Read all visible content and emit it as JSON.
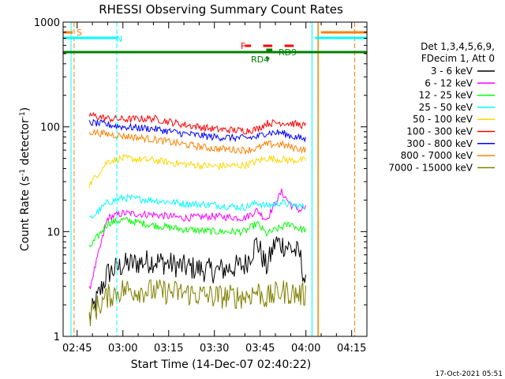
{
  "chart_data": {
    "type": "line",
    "title": "RHESSI Observing Summary Count Rates",
    "ylabel": "Count Rate (s^-1 detector^-1)",
    "xlabel": "Start Time (14-Dec-07 02:40:22)",
    "yscale": "log",
    "ylim": [
      1,
      1000
    ],
    "xlim_minutes": [
      160.4,
      260.0
    ],
    "x_ticks": [
      "02:45",
      "03:00",
      "03:15",
      "03:30",
      "03:45",
      "04:00",
      "04:15"
    ],
    "y_ticks": [
      "1",
      "10",
      "100",
      "1000"
    ],
    "legend_header": [
      "Det 1,3,4,5,6,9,",
      "FDecim 1, Att 0"
    ],
    "series": [
      {
        "name": "3 - 6 keV",
        "color": "#000000",
        "x": [
          "02:49",
          "02:55",
          "03:00",
          "03:10",
          "03:20",
          "03:30",
          "03:40",
          "03:44",
          "03:47",
          "03:50",
          "03:55",
          "03:58",
          "04:00"
        ],
        "y": [
          1.5,
          4.0,
          4.8,
          5.3,
          4.6,
          4.2,
          4.8,
          8,
          4.5,
          8,
          7,
          6,
          3
        ]
      },
      {
        "name": "6 - 12 keV",
        "color": "#ff00ff",
        "x": [
          "02:49",
          "02:55",
          "03:00",
          "03:10",
          "03:20",
          "03:30",
          "03:40",
          "03:44",
          "03:47",
          "03:52",
          "03:55",
          "03:58",
          "04:00"
        ],
        "y": [
          2.8,
          13.5,
          15,
          14.5,
          13.5,
          14,
          13.5,
          16,
          13,
          24,
          18,
          16,
          17
        ]
      },
      {
        "name": "12 - 25 keV",
        "color": "#00ff00",
        "x": [
          "02:49",
          "02:55",
          "03:00",
          "03:10",
          "03:20",
          "03:30",
          "03:40",
          "03:44",
          "03:47",
          "03:52",
          "03:55",
          "03:58",
          "04:00"
        ],
        "y": [
          7,
          12,
          13,
          11.5,
          10.5,
          10,
          10,
          12,
          9.5,
          11,
          12,
          10.5,
          10.5
        ]
      },
      {
        "name": "25 - 50 keV",
        "color": "#00ffff",
        "x": [
          "02:49",
          "02:55",
          "03:00",
          "03:10",
          "03:20",
          "03:30",
          "03:40",
          "03:44",
          "03:47",
          "03:52",
          "03:55",
          "03:58",
          "04:00"
        ],
        "y": [
          13,
          19,
          21,
          20,
          18.5,
          18,
          17,
          19,
          17.5,
          19,
          18,
          17.5,
          17
        ]
      },
      {
        "name": "50 - 100 keV",
        "color": "#ffd700",
        "x": [
          "02:49",
          "02:55",
          "03:00",
          "03:10",
          "03:20",
          "03:30",
          "03:40",
          "03:44",
          "03:47",
          "03:52",
          "03:55",
          "03:58",
          "04:00"
        ],
        "y": [
          28,
          47,
          50,
          48,
          44,
          42,
          43,
          47,
          50,
          49,
          48,
          48,
          48
        ]
      },
      {
        "name": "100 - 300 keV",
        "color": "#ff0000",
        "x": [
          "02:49",
          "02:55",
          "03:00",
          "03:10",
          "03:20",
          "03:30",
          "03:40",
          "03:44",
          "03:47",
          "03:52",
          "03:55",
          "03:58",
          "04:00"
        ],
        "y": [
          130,
          120,
          118,
          120,
          105,
          95,
          92,
          95,
          108,
          110,
          108,
          105,
          102
        ]
      },
      {
        "name": "300 - 800 keV",
        "color": "#0000ff",
        "x": [
          "02:49",
          "02:55",
          "03:00",
          "03:10",
          "03:20",
          "03:30",
          "03:40",
          "03:44",
          "03:47",
          "03:52",
          "03:55",
          "03:58",
          "04:00"
        ],
        "y": [
          110,
          105,
          100,
          96,
          86,
          80,
          78,
          80,
          88,
          88,
          82,
          78,
          76
        ]
      },
      {
        "name": "800 - 7000 keV",
        "color": "#ff8000",
        "x": [
          "02:49",
          "02:55",
          "03:00",
          "03:10",
          "03:20",
          "03:30",
          "03:40",
          "03:44",
          "03:47",
          "03:52",
          "03:55",
          "03:58",
          "04:00"
        ],
        "y": [
          90,
          85,
          82,
          76,
          68,
          62,
          60,
          62,
          68,
          68,
          64,
          62,
          60
        ]
      },
      {
        "name": "7000 - 15000 keV",
        "color": "#808000",
        "x": [
          "02:49",
          "02:55",
          "03:00",
          "03:10",
          "03:20",
          "03:30",
          "03:40",
          "03:44",
          "03:47",
          "03:52",
          "03:55",
          "03:58",
          "04:00"
        ],
        "y": [
          1.6,
          2.4,
          2.8,
          2.7,
          2.6,
          2.4,
          2.4,
          2.7,
          2.3,
          2.7,
          2.6,
          2.5,
          2.5
        ]
      }
    ],
    "flags": {
      "labels": [
        "S",
        "N",
        "F",
        "RD9",
        "RD4"
      ],
      "s_color": "#ff8000",
      "n_color": "#00ffff",
      "f_color": "#ff0000",
      "rd_color": "#008000",
      "attenuator_level_color": "#008000"
    },
    "markers": {
      "orange_dashed": [
        "02:44",
        "04:16"
      ],
      "cyan_dashed": [
        "02:58",
        "04:02"
      ],
      "orange_solid": [
        "04:04"
      ],
      "cyan_solid": [
        "02:43",
        "04:02"
      ]
    }
  },
  "footer": {
    "timestamp": "17-Oct-2021 05:51"
  }
}
